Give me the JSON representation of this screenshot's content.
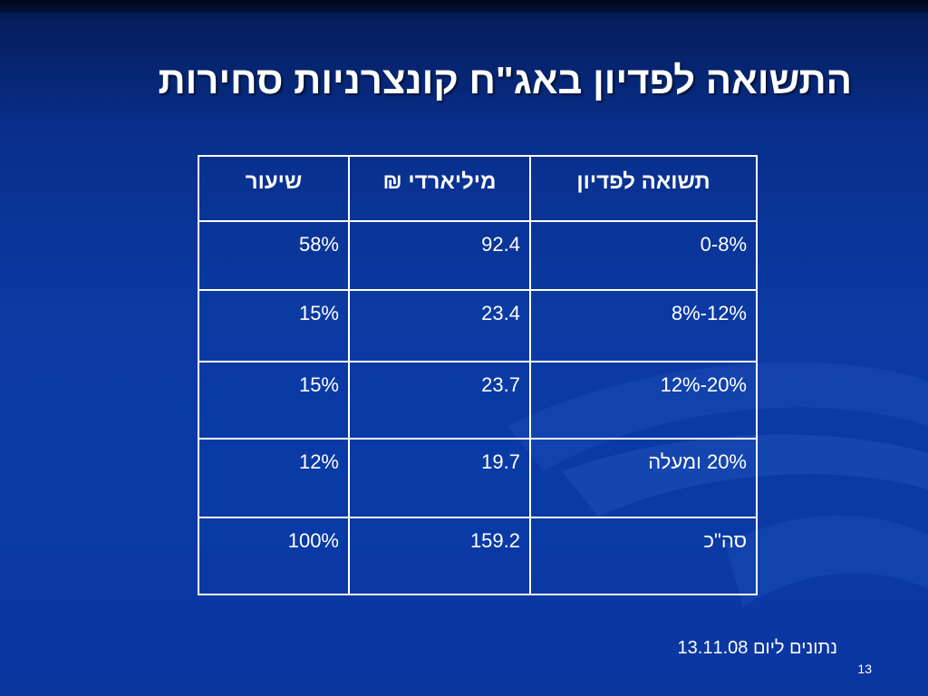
{
  "slide": {
    "title": "התשואה לפדיון באג\"ח קונצרניות סחירות",
    "footnote": "נתונים ליום 13.11.08",
    "page_number": "13"
  },
  "table": {
    "headers": {
      "range": "תשואה לפדיון",
      "billion": "מיליארדי ₪",
      "rate": "שיעור"
    },
    "rows": [
      {
        "range": "0-8%",
        "billion": "92.4",
        "rate": "58%"
      },
      {
        "range": "12%-8%",
        "billion": "23.4",
        "rate": "15%"
      },
      {
        "range": "20%-12%",
        "billion": "23.7",
        "rate": "15%"
      },
      {
        "range": "20% ומעלה",
        "billion": "19.7",
        "rate": "12%"
      },
      {
        "range": "סה\"כ",
        "billion": "159.2",
        "rate": "100%"
      }
    ]
  },
  "colors": {
    "background": "#0a3aa6",
    "text": "#ffffff",
    "grid": "#ffffff"
  }
}
